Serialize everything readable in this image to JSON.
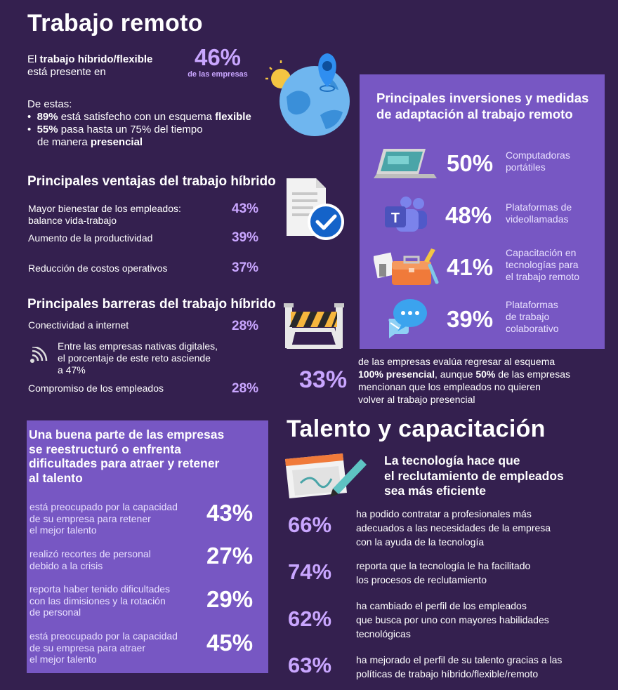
{
  "remote": {
    "title": "Trabajo remoto",
    "hybrid_line1_pre": "El ",
    "hybrid_line1_bold": "trabajo híbrido/flexible",
    "hybrid_line2": "está presente en",
    "hybrid_pct": "46%",
    "hybrid_pct_caption": "de las empresas",
    "of_these": "De estas:",
    "bullet1_pct": "89%",
    "bullet1_text": " está satisfecho con un esquema ",
    "bullet1_bold": "flexible",
    "bullet2_pct": "55%",
    "bullet2_text1": " pasa hasta un 75% del tiempo",
    "bullet2_text2": "de manera ",
    "bullet2_bold": "presencial"
  },
  "advantages": {
    "title": "Principales ventajas del trabajo híbrido",
    "items": [
      {
        "label": "Mayor bienestar de los empleados: balance vida-trabajo",
        "pct": "43%"
      },
      {
        "label": "Aumento de la productividad",
        "pct": "39%"
      },
      {
        "label": "Reducción de costos operativos",
        "pct": "37%"
      }
    ]
  },
  "barriers": {
    "title": "Principales barreras del trabajo híbrido",
    "item1_label": "Conectividad a internet",
    "item1_pct": "28%",
    "note_line1": "Entre las empresas nativas digitales,",
    "note_line2": "el porcentaje de este reto asciende",
    "note_line3": "a 47%",
    "item2_label": "Compromiso de los empleados",
    "item2_pct": "28%"
  },
  "investments": {
    "title_line1": "Principales inversiones y medidas",
    "title_line2": "de adaptación al trabajo remoto",
    "items": [
      {
        "pct": "50%",
        "label_lines": [
          "Computadoras",
          "portátiles"
        ]
      },
      {
        "pct": "48%",
        "label_lines": [
          "Plataformas de",
          "videollamadas"
        ]
      },
      {
        "pct": "41%",
        "label_lines": [
          "Capacitación en",
          "tecnologías para",
          "el trabajo remoto"
        ]
      },
      {
        "pct": "39%",
        "label_lines": [
          "Plataformas",
          "de trabajo",
          "colaborativo"
        ]
      }
    ]
  },
  "return": {
    "pct": "33%",
    "line1": "de las empresas evalúa regresar al esquema",
    "line2_bold1": "100% presencial",
    "line2_mid": ", aunque ",
    "line2_bold2": "50%",
    "line2_end": " de las empresas",
    "line3": "mencionan que los empleados no quieren",
    "line4": "volver al trabajo presencial"
  },
  "talent_box": {
    "title_lines": [
      "Una buena parte de las empresas",
      "se reestructuró o enfrenta",
      "dificultades para atraer y retener",
      "al talento"
    ],
    "items": [
      {
        "pct": "43%",
        "lines": [
          "está preocupado por la capacidad",
          "de su empresa para retener",
          "el mejor talento"
        ]
      },
      {
        "pct": "27%",
        "lines": [
          "realizó recortes de personal",
          "debido a la crisis"
        ]
      },
      {
        "pct": "29%",
        "lines": [
          "reporta haber tenido dificultades",
          "con las dimisiones y la rotación",
          "de personal"
        ]
      },
      {
        "pct": "45%",
        "lines": [
          "está preocupado por la capacidad",
          "de su empresa para atraer",
          "el mejor talento"
        ]
      }
    ]
  },
  "talent": {
    "title": "Talento y capacitación",
    "subtitle_lines": [
      "La tecnología hace que",
      "el reclutamiento de empleados",
      "sea más eficiente"
    ],
    "items": [
      {
        "pct": "66%",
        "lines": [
          "ha podido contratar a profesionales más",
          "adecuados a las necesidades de la empresa",
          "con la ayuda de la tecnología"
        ]
      },
      {
        "pct": "74%",
        "lines": [
          "reporta que la tecnología le ha facilitado",
          "los procesos de reclutamiento"
        ]
      },
      {
        "pct": "62%",
        "lines": [
          "ha cambiado el perfil de los empleados",
          "que busca por uno con mayores habilidades",
          "tecnológicas"
        ]
      },
      {
        "pct": "63%",
        "lines": [
          "ha mejorado el perfil de su talento gracias a las",
          "políticas de trabajo híbrido/flexible/remoto"
        ]
      }
    ]
  }
}
